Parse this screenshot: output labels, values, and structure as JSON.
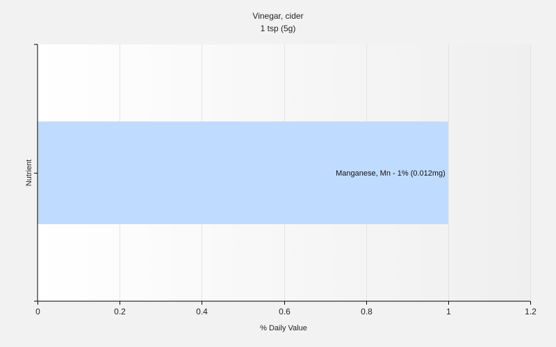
{
  "colors": {
    "background": "#f2f2f2",
    "bar": "#bfdbff",
    "axis": "#000000",
    "grid": "#e3e3e3"
  },
  "chart_data": {
    "type": "bar",
    "orientation": "horizontal",
    "title": "Vinegar, cider",
    "subtitle": "1 tsp (5g)",
    "xlabel": "% Daily Value",
    "ylabel": "Nutrient",
    "xlim": [
      0,
      1.2
    ],
    "xticks": [
      "0",
      "0.2",
      "0.4",
      "0.6",
      "0.8",
      "1",
      "1.2"
    ],
    "grid": true,
    "categories": [
      "Manganese, Mn"
    ],
    "values": [
      1
    ],
    "data_labels": [
      "Manganese, Mn - 1% (0.012mg)"
    ]
  }
}
